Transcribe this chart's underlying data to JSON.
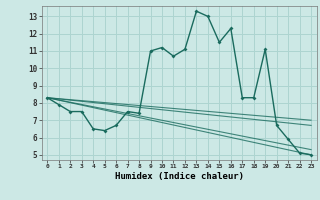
{
  "xlabel": "Humidex (Indice chaleur)",
  "ylabel": "",
  "background_color": "#cce8e5",
  "grid_color": "#add4d0",
  "line_color": "#1a6b5e",
  "xlim": [
    -0.5,
    23.5
  ],
  "ylim": [
    4.7,
    13.6
  ],
  "yticks": [
    5,
    6,
    7,
    8,
    9,
    10,
    11,
    12,
    13
  ],
  "xticks": [
    0,
    1,
    2,
    3,
    4,
    5,
    6,
    7,
    8,
    9,
    10,
    11,
    12,
    13,
    14,
    15,
    16,
    17,
    18,
    19,
    20,
    21,
    22,
    23
  ],
  "series": [
    [
      0,
      8.3
    ],
    [
      1,
      7.9
    ],
    [
      2,
      7.5
    ],
    [
      3,
      7.5
    ],
    [
      4,
      6.5
    ],
    [
      5,
      6.4
    ],
    [
      6,
      6.7
    ],
    [
      7,
      7.5
    ],
    [
      8,
      7.4
    ],
    [
      9,
      11.0
    ],
    [
      10,
      11.2
    ],
    [
      11,
      10.7
    ],
    [
      12,
      11.1
    ],
    [
      13,
      13.3
    ],
    [
      14,
      13.0
    ],
    [
      15,
      11.5
    ],
    [
      16,
      12.3
    ],
    [
      17,
      8.3
    ],
    [
      18,
      8.3
    ],
    [
      19,
      11.1
    ],
    [
      20,
      6.7
    ],
    [
      21,
      5.9
    ],
    [
      22,
      5.1
    ],
    [
      23,
      5.0
    ]
  ],
  "series2": [
    [
      0,
      8.3
    ],
    [
      23,
      5.0
    ]
  ],
  "series3": [
    [
      0,
      8.3
    ],
    [
      23,
      5.3
    ]
  ],
  "series4": [
    [
      0,
      8.3
    ],
    [
      23,
      6.7
    ]
  ],
  "series5": [
    [
      0,
      8.3
    ],
    [
      23,
      7.0
    ]
  ]
}
